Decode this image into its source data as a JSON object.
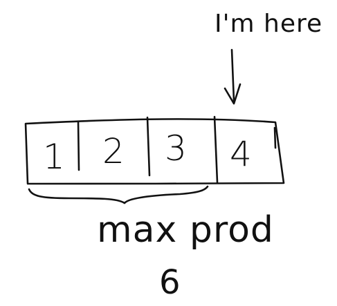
{
  "annotation": {
    "pointer_text": "I'm here"
  },
  "array": {
    "cells": [
      "1",
      "2",
      "3",
      "4"
    ]
  },
  "range_label": {
    "text": "max prod"
  },
  "result": {
    "value": "6"
  }
}
